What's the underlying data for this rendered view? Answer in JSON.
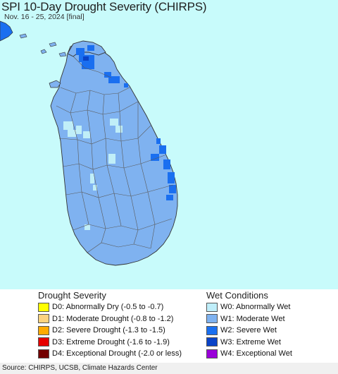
{
  "title": "SPI 10-Day Drought Severity (CHIRPS)",
  "subtitle": "Nov. 16 - 25, 2024 [final]",
  "colors": {
    "ocean": "#c8fbfb",
    "land_moderate_wet": "#7fb2f0",
    "abnormally_wet": "#c0eef8",
    "severe_wet": "#1a6ff0",
    "extreme_wet": "#0a43c7",
    "boundary": "#555555"
  },
  "legend": {
    "drought": {
      "heading": "Drought Severity",
      "items": [
        {
          "label": "D0: Abnormally Dry (-0.5 to -0.7)",
          "color": "#ffff00"
        },
        {
          "label": "D1: Moderate Drought (-0.8 to -1.2)",
          "color": "#fcd37f"
        },
        {
          "label": "D2: Severe Drought (-1.3 to -1.5)",
          "color": "#ffaa00"
        },
        {
          "label": "D3: Extreme Drought (-1.6 to -1.9)",
          "color": "#e60000"
        },
        {
          "label": "D4: Exceptional Drought (-2.0 or less)",
          "color": "#730000"
        }
      ]
    },
    "wet": {
      "heading": "Wet Conditions",
      "items": [
        {
          "label": "W0: Abnormally Wet",
          "color": "#bfeefa"
        },
        {
          "label": "W1: Moderate Wet",
          "color": "#7fb2f0"
        },
        {
          "label": "W2: Severe Wet",
          "color": "#1a6ff0"
        },
        {
          "label": "W3: Extreme Wet",
          "color": "#0a43c7"
        },
        {
          "label": "W4: Exceptional Wet",
          "color": "#9a00d9"
        }
      ]
    }
  },
  "source": "Source: CHIRPS, UCSB, Climate Hazards Center"
}
